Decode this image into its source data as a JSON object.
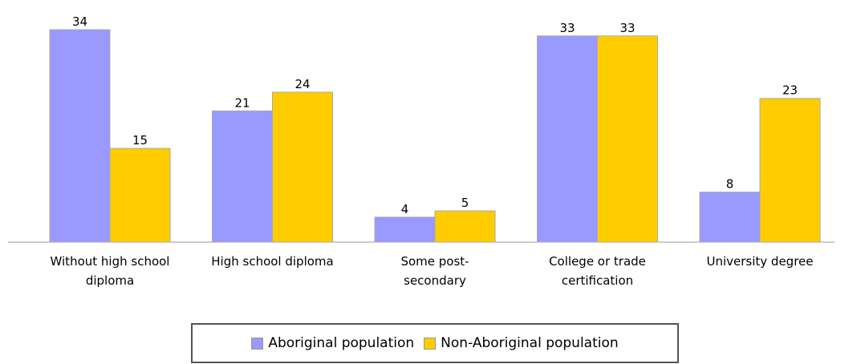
{
  "chart_data": {
    "type": "bar",
    "categories": [
      "Without high school diploma",
      "High school diploma",
      "Some post-secondary",
      "College or trade certification",
      "University degree"
    ],
    "series": [
      {
        "name": "Aboriginal population",
        "color": "#9999ff",
        "values": [
          34,
          21,
          4,
          33,
          8
        ]
      },
      {
        "name": "Non-Aboriginal population",
        "color": "#ffcc00",
        "values": [
          15,
          24,
          5,
          33,
          23
        ]
      }
    ],
    "legend": "bottom"
  }
}
